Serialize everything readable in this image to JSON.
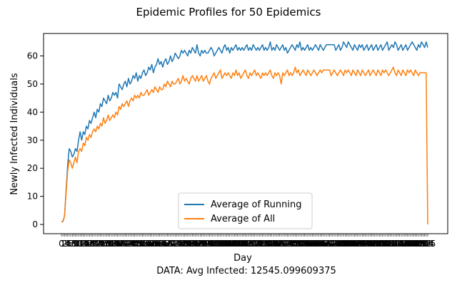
{
  "chart_data": {
    "type": "line",
    "title": "Epidemic Profiles for 50 Epidemics",
    "xlabel": "Day",
    "ylabel": "Newly Infected Individuals",
    "footer": "DATA: Avg Infected: 12545.099609375",
    "xlim": [
      0,
      235
    ],
    "ylim": [
      -3,
      68
    ],
    "yticks": [
      0,
      10,
      20,
      30,
      40,
      50,
      60
    ],
    "grid": false,
    "legend_position": "lower center",
    "x_tick_labels_overlapping": true,
    "x": [
      0,
      1,
      2,
      3,
      4,
      5,
      6,
      7,
      8,
      9,
      10,
      11,
      12,
      13,
      14,
      15,
      16,
      17,
      18,
      19,
      20,
      21,
      22,
      23,
      24,
      25,
      26,
      27,
      28,
      29,
      30,
      31,
      32,
      33,
      34,
      35,
      36,
      37,
      38,
      39,
      40,
      41,
      42,
      43,
      44,
      45,
      46,
      47,
      48,
      49,
      50,
      51,
      52,
      53,
      54,
      55,
      56,
      57,
      58,
      59,
      60,
      61,
      62,
      63,
      64,
      65,
      66,
      67,
      68,
      69,
      70,
      71,
      72,
      73,
      74,
      75,
      76,
      77,
      78,
      79,
      80,
      81,
      82,
      83,
      84,
      85,
      86,
      87,
      88,
      89,
      90,
      91,
      92,
      93,
      94,
      95,
      96,
      97,
      98,
      99,
      100,
      101,
      102,
      103,
      104,
      105,
      106,
      107,
      108,
      109,
      110,
      111,
      112,
      113,
      114,
      115,
      116,
      117,
      118,
      119,
      120,
      121,
      122,
      123,
      124,
      125,
      126,
      127,
      128,
      129,
      130,
      131,
      132,
      133,
      134,
      135,
      136,
      137,
      138,
      139,
      140,
      141,
      142,
      143,
      144,
      145,
      146,
      147,
      148,
      149,
      150,
      151,
      152,
      153,
      154,
      155,
      156,
      157,
      158,
      159,
      160,
      161,
      162,
      163,
      164,
      165,
      166,
      167,
      168,
      169,
      170,
      171,
      172,
      173,
      174,
      175,
      176,
      177,
      178,
      179,
      180,
      181,
      182,
      183,
      184,
      185,
      186,
      187,
      188,
      189,
      190,
      191,
      192,
      193,
      194,
      195,
      196,
      197,
      198,
      199,
      200,
      201,
      202,
      203,
      204,
      205,
      206,
      207,
      208,
      209,
      210,
      211,
      212,
      213,
      214,
      215,
      216,
      217,
      218,
      219,
      220,
      221,
      222,
      223,
      224,
      225,
      226,
      227,
      228,
      229,
      230,
      231,
      232,
      233,
      234,
      235
    ],
    "series": [
      {
        "name": "Average of Running",
        "color": "#1f77b4",
        "values": [
          1,
          1,
          3,
          12,
          21,
          27,
          26,
          24,
          25,
          27,
          26,
          30,
          33,
          30,
          33,
          32,
          35,
          34,
          37,
          36,
          38,
          40,
          38,
          41,
          40,
          43,
          42,
          45,
          44,
          43,
          46,
          44,
          45,
          47,
          46,
          47,
          45,
          50,
          49,
          48,
          50,
          51,
          49,
          52,
          50,
          51,
          53,
          52,
          54,
          51,
          53,
          52,
          54,
          55,
          53,
          54,
          56,
          55,
          57,
          54,
          56,
          57,
          59,
          57,
          58,
          56,
          58,
          59,
          57,
          58,
          60,
          58,
          59,
          61,
          60,
          59,
          60,
          62,
          61,
          62,
          61,
          60,
          62,
          61,
          63,
          62,
          61,
          64,
          61,
          60,
          62,
          61,
          62,
          61,
          61,
          62,
          63,
          62,
          60,
          61,
          62,
          63,
          62,
          61,
          63,
          64,
          62,
          63,
          61,
          63,
          62,
          63,
          64,
          62,
          63,
          62,
          63,
          62,
          63,
          64,
          62,
          63,
          62,
          64,
          63,
          62,
          63,
          62,
          63,
          64,
          62,
          63,
          62,
          63,
          65,
          62,
          63,
          62,
          64,
          63,
          62,
          63,
          64,
          62,
          63,
          61,
          62,
          63,
          64,
          63,
          62,
          64,
          63,
          65,
          62,
          63,
          62,
          63,
          64,
          62,
          63,
          62,
          63,
          64,
          63,
          62,
          64,
          63,
          62,
          63,
          64,
          64,
          64,
          64,
          64,
          64,
          62,
          63,
          64,
          62,
          63,
          65,
          64,
          63,
          65,
          64,
          63,
          62,
          64,
          63,
          62,
          64,
          63,
          64,
          62,
          63,
          64,
          62,
          63,
          64,
          62,
          63,
          64,
          62,
          63,
          64,
          62,
          63,
          64,
          65,
          62,
          63,
          64,
          63,
          65,
          64,
          62,
          63,
          64,
          62,
          63,
          64,
          62,
          63,
          64,
          65,
          64,
          63,
          62,
          64,
          63,
          65,
          64,
          63,
          65,
          63
        ]
      },
      {
        "name": "Average of All",
        "color": "#ff7f0e",
        "values": [
          1,
          1,
          3,
          11,
          19,
          23,
          22,
          20,
          22,
          24,
          22,
          26,
          27,
          26,
          29,
          28,
          31,
          30,
          32,
          31,
          33,
          34,
          33,
          35,
          34,
          36,
          35,
          38,
          36,
          37,
          39,
          37,
          38,
          39,
          38,
          40,
          39,
          42,
          41,
          43,
          42,
          43,
          44,
          42,
          44,
          45,
          44,
          46,
          45,
          46,
          45,
          47,
          46,
          46,
          47,
          48,
          46,
          47,
          48,
          47,
          49,
          48,
          47,
          49,
          48,
          48,
          50,
          49,
          51,
          50,
          49,
          51,
          50,
          50,
          51,
          52,
          50,
          51,
          53,
          51,
          52,
          51,
          50,
          52,
          53,
          52,
          51,
          53,
          51,
          52,
          53,
          51,
          52,
          53,
          51,
          50,
          52,
          53,
          54,
          52,
          53,
          54,
          55,
          52,
          53,
          54,
          53,
          54,
          53,
          52,
          54,
          53,
          55,
          53,
          54,
          52,
          53,
          54,
          55,
          53,
          52,
          54,
          53,
          54,
          55,
          53,
          54,
          53,
          52,
          54,
          53,
          54,
          53,
          54,
          55,
          53,
          52,
          54,
          53,
          54,
          53,
          50,
          54,
          53,
          54,
          55,
          53,
          54,
          53,
          54,
          56,
          54,
          55,
          53,
          54,
          55,
          54,
          53,
          55,
          54,
          53,
          54,
          55,
          54,
          53,
          54,
          55,
          54,
          55,
          55,
          55,
          55,
          55,
          53,
          54,
          55,
          54,
          53,
          54,
          55,
          54,
          53,
          55,
          54,
          55,
          54,
          53,
          55,
          54,
          53,
          55,
          54,
          53,
          55,
          54,
          53,
          54,
          55,
          53,
          54,
          55,
          54,
          53,
          55,
          54,
          53,
          55,
          54,
          55,
          54,
          53,
          54,
          55,
          56,
          54,
          53,
          55,
          54,
          53,
          55,
          54,
          53,
          55,
          54,
          55,
          54,
          53,
          55,
          54,
          53,
          54,
          54,
          54,
          54,
          54,
          0
        ]
      }
    ]
  }
}
